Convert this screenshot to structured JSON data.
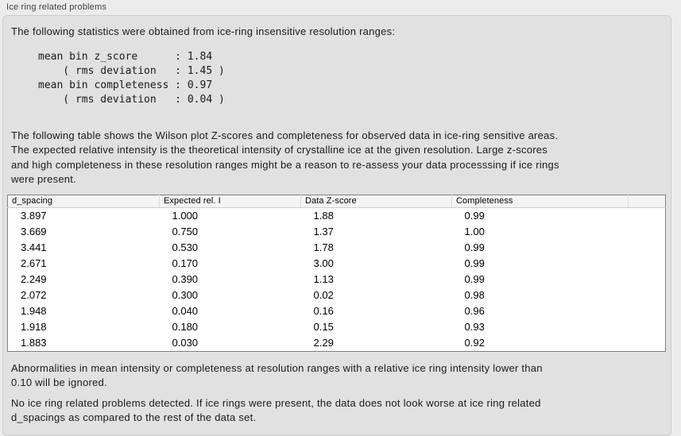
{
  "panel": {
    "title": "Ice ring related problems"
  },
  "intro": {
    "text": "The following statistics were obtained from ice-ring insensitive resolution ranges:"
  },
  "stats": {
    "lines": [
      "mean bin z_score      : 1.84",
      "    ( rms deviation   : 1.45 )",
      "mean bin completeness : 0.97",
      "    ( rms deviation   : 0.04 )"
    ],
    "mean_bin_z_score": "1.84",
    "z_score_rms_deviation": "1.45",
    "mean_bin_completeness": "0.97",
    "completeness_rms_deviation": "0.04"
  },
  "description": {
    "lines": [
      "The following table shows the Wilson plot Z-scores and completeness for observed data in ice-ring sensitive areas.",
      "The expected relative intensity is the theoretical intensity of crystalline ice at the given resolution. Large z-scores",
      "and high completeness in these resolution ranges might be a reason to re-assess your data processsing if ice rings",
      "were present."
    ]
  },
  "table": {
    "columns": [
      "d_spacing",
      "Expected rel. I",
      "Data Z-score",
      "Completeness",
      ""
    ],
    "rows": [
      [
        "3.897",
        "1.000",
        "1.88",
        "0.99"
      ],
      [
        "3.669",
        "0.750",
        "1.37",
        "1.00"
      ],
      [
        "3.441",
        "0.530",
        "1.78",
        "0.99"
      ],
      [
        "2.671",
        "0.170",
        "3.00",
        "0.99"
      ],
      [
        "2.249",
        "0.390",
        "1.13",
        "0.99"
      ],
      [
        "2.072",
        "0.300",
        "0.02",
        "0.98"
      ],
      [
        "1.948",
        "0.040",
        "0.16",
        "0.96"
      ],
      [
        "1.918",
        "0.180",
        "0.15",
        "0.93"
      ],
      [
        "1.883",
        "0.030",
        "2.29",
        "0.92"
      ]
    ]
  },
  "notes": {
    "ignore_threshold_lines": [
      "Abnormalities in mean intensity or completeness at resolution ranges with a relative ice ring intensity lower than",
      "0.10 will be ignored."
    ],
    "no_problems_lines": [
      "No ice ring related problems detected. If ice rings were present, the data does not look worse at ice ring related",
      "d_spacings as compared to the rest of the data set."
    ]
  },
  "colors": {
    "page_background": "#ececec",
    "groupbox_background": "#e1e1e1",
    "groupbox_border": "#cbcbcb",
    "table_background": "#ffffff",
    "table_border": "#7f7f7f",
    "table_header_background": "#f4f4f4",
    "text": "#1a1a1a"
  }
}
